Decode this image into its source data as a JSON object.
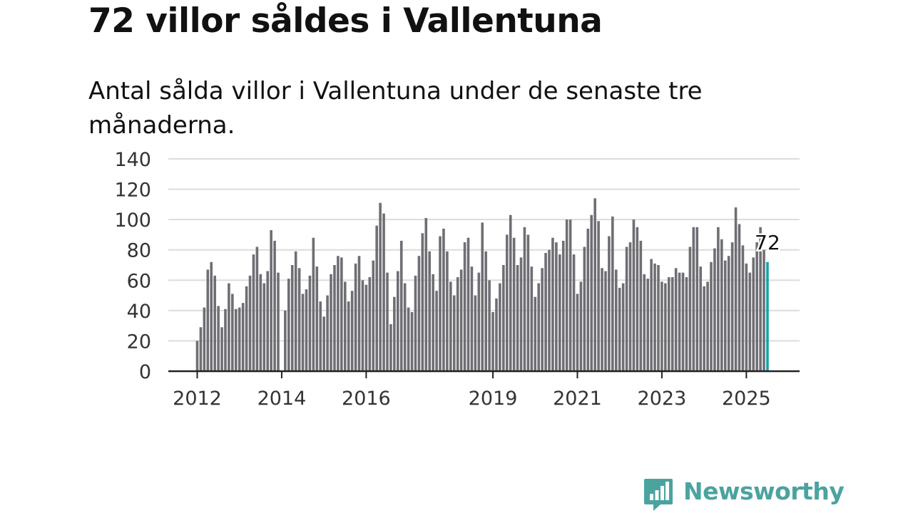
{
  "title": "72 villor såldes i Vallentuna",
  "subtitle": "Antal sålda villor i Vallentuna under de senaste tre månaderna.",
  "brand": {
    "name": "Newsworthy",
    "color": "#4ba3a0",
    "icon": "newsworthy-logo-icon"
  },
  "chart_data": {
    "type": "bar",
    "title": "72 villor såldes i Vallentuna",
    "subtitle": "Antal sålda villor i Vallentuna under de senaste tre månaderna.",
    "start": "2012-01",
    "frequency": "monthly",
    "ylim": [
      0,
      140
    ],
    "yticks": [
      0,
      20,
      40,
      60,
      80,
      100,
      120,
      140
    ],
    "xticks": [
      "2012",
      "2014",
      "2016",
      "2019",
      "2021",
      "2023",
      "2025"
    ],
    "grid": true,
    "colors": {
      "bars": "#6e6e74",
      "highlight": "#17a2a8",
      "grid": "#dcdcdc",
      "axis": "#222222"
    },
    "values": [
      20,
      29,
      42,
      67,
      72,
      63,
      43,
      29,
      41,
      58,
      51,
      41,
      42,
      45,
      56,
      63,
      77,
      82,
      64,
      58,
      66,
      93,
      86,
      65,
      0,
      40,
      61,
      70,
      79,
      68,
      51,
      54,
      63,
      88,
      69,
      46,
      36,
      50,
      64,
      70,
      76,
      75,
      59,
      46,
      53,
      71,
      76,
      60,
      57,
      62,
      73,
      96,
      111,
      104,
      65,
      31,
      49,
      66,
      86,
      58,
      42,
      39,
      63,
      76,
      91,
      101,
      79,
      64,
      53,
      89,
      94,
      79,
      59,
      50,
      62,
      67,
      85,
      88,
      69,
      50,
      65,
      98,
      79,
      60,
      39,
      48,
      58,
      70,
      90,
      103,
      88,
      70,
      75,
      95,
      90,
      69,
      49,
      58,
      68,
      78,
      80,
      88,
      85,
      77,
      86,
      100,
      100,
      77,
      51,
      59,
      82,
      94,
      103,
      114,
      99,
      68,
      66,
      89,
      102,
      67,
      55,
      58,
      82,
      85,
      100,
      95,
      86,
      64,
      61,
      74,
      71,
      70,
      59,
      58,
      62,
      62,
      68,
      65,
      65,
      62,
      82,
      95,
      95,
      69,
      56,
      59,
      72,
      81,
      95,
      87,
      73,
      76,
      85,
      108,
      97,
      83,
      71,
      65,
      75,
      85,
      95,
      80,
      72
    ],
    "highlight": {
      "value": 72,
      "label": "72"
    }
  }
}
